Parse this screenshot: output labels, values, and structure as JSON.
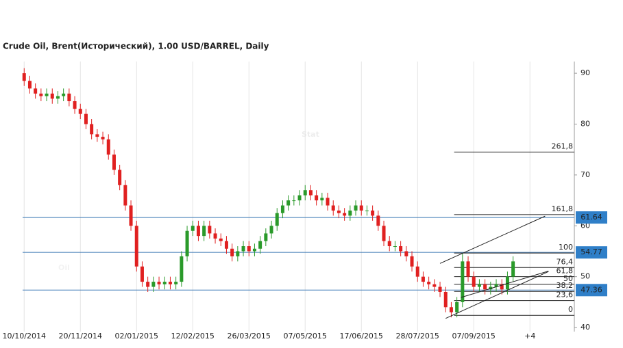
{
  "chart_data": {
    "type": "candlestick",
    "title": "Crude Oil, Brent(Исторический), 1.00 USD/BARREL, Daily",
    "watermark": [
      "Oil",
      "Stat"
    ],
    "xlim": [
      -4.3,
      97.9
    ],
    "xticks": [
      {
        "value": 0,
        "label": "10/10/2014"
      },
      {
        "value": 10,
        "label": "20/11/2014"
      },
      {
        "value": 20,
        "label": "02/01/2015"
      },
      {
        "value": 30,
        "label": "12/02/2015"
      },
      {
        "value": 40,
        "label": "26/03/2015"
      },
      {
        "value": 50,
        "label": "07/05/2015"
      },
      {
        "value": 60,
        "label": "17/06/2015"
      },
      {
        "value": 70,
        "label": "28/07/2015"
      },
      {
        "value": 80,
        "label": "07/09/2015"
      },
      {
        "value": 90,
        "label": "+4"
      }
    ],
    "ylim": [
      39.2,
      92.3
    ],
    "yticks": [
      40,
      50,
      60,
      70,
      80,
      90
    ],
    "grid": true,
    "up_color": "#2a9a2a",
    "down_color": "#e02020",
    "open": [
      90,
      88.5,
      87,
      86,
      85.5,
      86,
      85,
      85.5,
      86,
      84.5,
      83,
      82,
      80,
      78,
      77.5,
      77,
      74,
      71,
      68,
      64,
      60,
      52,
      49,
      48,
      49,
      48.5,
      49,
      48.5,
      49,
      54,
      59,
      60,
      58,
      60,
      58.5,
      57.5,
      57,
      55.5,
      54,
      55,
      56,
      55,
      55.5,
      57,
      58.5,
      60,
      62.5,
      64,
      65,
      65,
      66,
      67,
      66,
      65,
      65.5,
      64,
      63,
      62.5,
      62,
      63,
      64,
      63,
      63,
      62,
      60,
      57,
      56,
      56,
      55,
      54,
      52,
      50,
      49,
      48.5,
      48,
      47,
      44,
      43,
      45,
      53,
      50,
      48,
      48.5,
      47.5,
      48,
      48.5,
      47.5,
      50
    ],
    "high": [
      91,
      89.5,
      88,
      87,
      87,
      87,
      86.5,
      87,
      87,
      85.5,
      84,
      83,
      81,
      79,
      78.5,
      78,
      75,
      72,
      69,
      65,
      61,
      53,
      50,
      50,
      50,
      50,
      50,
      50,
      55,
      60,
      61,
      61,
      61,
      61,
      59.5,
      58.5,
      58,
      56.5,
      56,
      57,
      57,
      56.5,
      58,
      59.5,
      61,
      63.5,
      65,
      66,
      66,
      67,
      68,
      68,
      67,
      66.5,
      66.5,
      65,
      64,
      63.5,
      64,
      65,
      65,
      64,
      64,
      63,
      61,
      58,
      57,
      57,
      56,
      55,
      53,
      51,
      50,
      49.5,
      49,
      48,
      45,
      46,
      54.5,
      54,
      51,
      49.5,
      49.5,
      49,
      49.5,
      49.5,
      51,
      54
    ],
    "low": [
      87.5,
      86,
      85,
      84.5,
      84.5,
      84,
      84,
      84.5,
      83.5,
      82,
      81,
      79,
      77,
      76.5,
      76,
      73,
      70,
      67,
      63,
      59,
      51,
      48,
      47,
      47,
      47.5,
      47.5,
      47.5,
      47.5,
      48,
      53,
      58,
      57,
      57,
      57.5,
      56.5,
      56,
      54.5,
      53,
      53,
      54,
      54,
      54,
      54.5,
      56,
      57.5,
      59,
      61.5,
      63,
      64,
      64,
      65,
      65,
      64,
      64,
      63,
      62,
      61.5,
      61,
      61,
      62,
      62,
      62,
      61,
      59,
      56,
      55,
      55,
      54,
      53,
      51,
      49,
      48,
      47.5,
      47,
      46,
      43,
      42,
      42,
      44,
      49,
      47,
      47,
      46.5,
      46.5,
      47,
      46.5,
      46.5,
      49
    ],
    "close": [
      88.5,
      87,
      86,
      85.5,
      86,
      85,
      85.5,
      86,
      84.5,
      83,
      82,
      80,
      78,
      77.5,
      77,
      74,
      71,
      68,
      64,
      60,
      52,
      49,
      48,
      49,
      48.5,
      49,
      48.5,
      49,
      54,
      59,
      60,
      58,
      60,
      58.5,
      57.5,
      57,
      55.5,
      54,
      55,
      56,
      55,
      55.5,
      57,
      58.5,
      60,
      62.5,
      64,
      65,
      65,
      66,
      67,
      66,
      65,
      65.5,
      64,
      63,
      62.5,
      62,
      63,
      64,
      63,
      63,
      62,
      60,
      57,
      56,
      56,
      55,
      54,
      52,
      50,
      49,
      48.5,
      48,
      47,
      44,
      43,
      45,
      53,
      50,
      48,
      48.5,
      47.5,
      48,
      48.5,
      47.5,
      50,
      53
    ],
    "price_levels": {
      "color": "#3a78b5",
      "values": [
        61.64,
        54.77,
        47.36
      ]
    },
    "fib_levels": [
      {
        "label": "261,8",
        "value": 74.5
      },
      {
        "label": "161,8",
        "value": 62.2
      },
      {
        "label": "100",
        "value": 54.65
      },
      {
        "label": "76,4",
        "value": 51.8
      },
      {
        "label": "61,8",
        "value": 50.0
      },
      {
        "label": "50",
        "value": 48.5
      },
      {
        "label": "38,2",
        "value": 47.1
      },
      {
        "label": "23,6",
        "value": 45.3
      },
      {
        "label": "0",
        "value": 42.4
      }
    ],
    "fib_start": 77,
    "trend_lines": [
      {
        "x": [
          74,
          92.7
        ],
        "y": [
          52.6,
          61.9
        ]
      },
      {
        "x": [
          75,
          93.3
        ],
        "y": [
          41.8,
          51.0
        ]
      },
      {
        "x": [
          77.7,
          93.3
        ],
        "y": [
          45.9,
          51.1
        ]
      }
    ]
  }
}
